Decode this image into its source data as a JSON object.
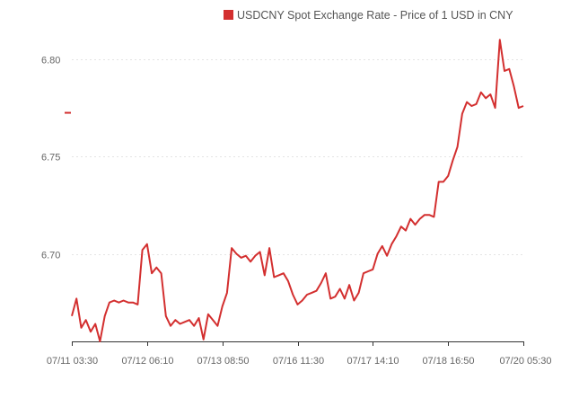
{
  "chart_data": {
    "type": "line",
    "legend": {
      "label": "USDCNY Spot Exchange Rate - Price of 1 USD in CNY",
      "position": "top-right"
    },
    "y_ticks": [
      {
        "value": 6.8,
        "label": "6.80"
      },
      {
        "value": 6.75,
        "label": "6.75"
      },
      {
        "value": 6.7,
        "label": "6.70"
      }
    ],
    "ylim": [
      6.655,
      6.812
    ],
    "x_ticks": [
      {
        "index": 0,
        "label": "07/11 03:30"
      },
      {
        "index": 16,
        "label": "07/12 06:10"
      },
      {
        "index": 32,
        "label": "07/13 08:50"
      },
      {
        "index": 48,
        "label": "07/16 11:30"
      },
      {
        "index": 64,
        "label": "07/17 14:10"
      },
      {
        "index": 80,
        "label": "07/18 16:50"
      },
      {
        "index": 96,
        "label": "07/20 05:30"
      }
    ],
    "current_marker": 6.7725,
    "grid": true,
    "colors": {
      "series": "#d32f2f",
      "grid": "#e4e4e4",
      "axis": "#333333",
      "text": "#666666"
    },
    "series": [
      {
        "values": [
          6.668,
          6.677,
          6.662,
          6.666,
          6.66,
          6.664,
          6.655,
          6.668,
          6.675,
          6.676,
          6.675,
          6.676,
          6.675,
          6.675,
          6.674,
          6.702,
          6.705,
          6.69,
          6.693,
          6.69,
          6.668,
          6.663,
          6.666,
          6.664,
          6.665,
          6.666,
          6.663,
          6.667,
          6.656,
          6.669,
          6.666,
          6.663,
          6.673,
          6.68,
          6.703,
          6.7,
          6.698,
          6.699,
          6.696,
          6.699,
          6.701,
          6.689,
          6.703,
          6.688,
          6.689,
          6.69,
          6.686,
          6.679,
          6.674,
          6.676,
          6.679,
          6.68,
          6.681,
          6.685,
          6.69,
          6.677,
          6.678,
          6.682,
          6.677,
          6.684,
          6.676,
          6.68,
          6.69,
          6.691,
          6.692,
          6.7,
          6.704,
          6.699,
          6.705,
          6.709,
          6.714,
          6.712,
          6.718,
          6.715,
          6.718,
          6.72,
          6.72,
          6.719,
          6.737,
          6.737,
          6.74,
          6.748,
          6.755,
          6.772,
          6.778,
          6.776,
          6.777,
          6.783,
          6.78,
          6.782,
          6.775,
          6.81,
          6.794,
          6.795,
          6.786,
          6.775,
          6.776
        ]
      }
    ]
  }
}
